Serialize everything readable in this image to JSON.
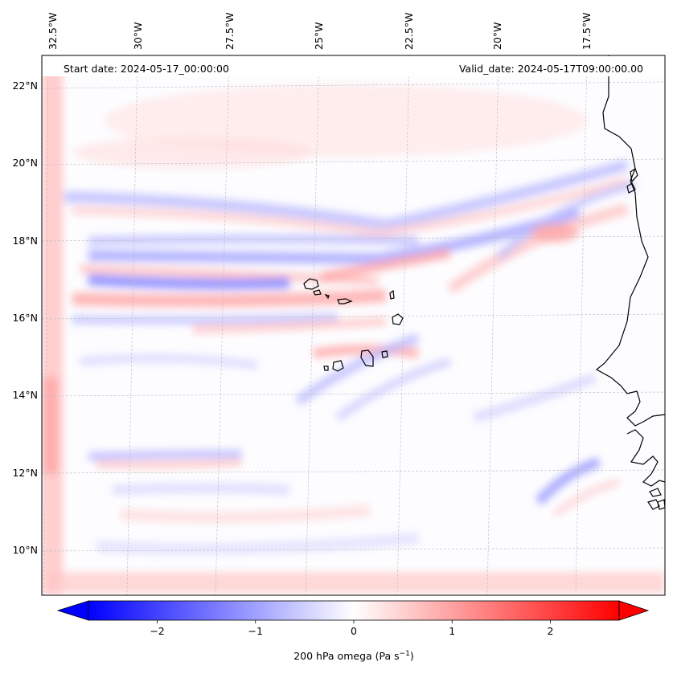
{
  "map": {
    "start_date_label": "Start date: 2024-05-17_00:00:00",
    "valid_date_label": "Valid_date: 2024-05-17T09:00:00.00",
    "lon_ticks": [
      {
        "value": -32.5,
        "label": "32.5°W"
      },
      {
        "value": -30,
        "label": "30°W"
      },
      {
        "value": -27.5,
        "label": "27.5°W"
      },
      {
        "value": -25,
        "label": "25°W"
      },
      {
        "value": -22.5,
        "label": "22.5°W"
      },
      {
        "value": -20,
        "label": "20°W"
      },
      {
        "value": -17.5,
        "label": "17.5°W"
      }
    ],
    "lat_ticks": [
      {
        "value": 22,
        "label": "22°N"
      },
      {
        "value": 20,
        "label": "20°N"
      },
      {
        "value": 18,
        "label": "18°N"
      },
      {
        "value": 16,
        "label": "16°N"
      },
      {
        "value": 14,
        "label": "14°N"
      },
      {
        "value": 12,
        "label": "12°N"
      },
      {
        "value": 10,
        "label": "10°N"
      }
    ],
    "extent": {
      "lon_min": -32.5,
      "lon_max": -15.4,
      "lat_min": 8.9,
      "lat_max": 22.8
    },
    "colorbar": {
      "label_prefix": "200 hPa omega (Pa s",
      "label_exponent": "−1",
      "label_suffix": ")",
      "range": [
        -2.7,
        2.7
      ],
      "ticks": [
        {
          "value": -2,
          "label": "−2"
        },
        {
          "value": -1,
          "label": "−1"
        },
        {
          "value": 0,
          "label": "0"
        },
        {
          "value": 1,
          "label": "1"
        },
        {
          "value": 2,
          "label": "2"
        }
      ],
      "colormap": "bwr",
      "color_min": "#0000ff",
      "color_mid": "#ffffff",
      "color_max": "#ff0000"
    }
  }
}
